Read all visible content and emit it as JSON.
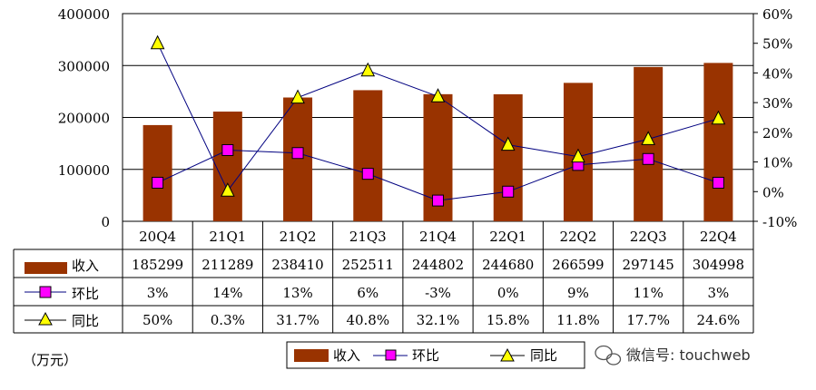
{
  "chart_data": {
    "type": "bar",
    "categories": [
      "20Q4",
      "21Q1",
      "21Q2",
      "21Q3",
      "21Q4",
      "22Q1",
      "22Q2",
      "22Q3",
      "22Q4"
    ],
    "series": [
      {
        "name": "收入",
        "type": "bar",
        "axis": "left",
        "values": [
          185299,
          211289,
          238410,
          252511,
          244802,
          244680,
          266599,
          297145,
          304998
        ],
        "labels": [
          "185299",
          "211289",
          "238410",
          "252511",
          "244802",
          "244680",
          "266599",
          "297145",
          "304998"
        ]
      },
      {
        "name": "环比",
        "type": "line",
        "marker": "square",
        "axis": "right",
        "values": [
          3,
          14,
          13,
          6,
          -3,
          0,
          9,
          11,
          3
        ],
        "labels": [
          "3%",
          "14%",
          "13%",
          "6%",
          "-3%",
          "0%",
          "9%",
          "11%",
          "3%"
        ]
      },
      {
        "name": "同比",
        "type": "line",
        "marker": "triangle",
        "axis": "right",
        "values": [
          50,
          0.3,
          31.7,
          40.8,
          32.1,
          15.8,
          11.8,
          17.7,
          24.6
        ],
        "labels": [
          "50%",
          "0.3%",
          "31.7%",
          "40.8%",
          "32.1%",
          "15.8%",
          "11.8%",
          "17.7%",
          "24.6%"
        ]
      }
    ],
    "y_left": {
      "range": [
        0,
        400000
      ],
      "ticks": [
        "0",
        "100000",
        "200000",
        "300000",
        "400000"
      ]
    },
    "y_right": {
      "range": [
        -10,
        60
      ],
      "ticks": [
        "-10%",
        "0%",
        "10%",
        "20%",
        "30%",
        "40%",
        "50%",
        "60%"
      ]
    },
    "unit": "（万元）",
    "legend": [
      "收入",
      "环比",
      "同比"
    ],
    "watermark": "微信号: touchweb"
  },
  "colors": {
    "bar": "#993300",
    "qoq_marker": "#ff00ff",
    "yoy_marker": "#ffff00",
    "line": "#000080"
  }
}
